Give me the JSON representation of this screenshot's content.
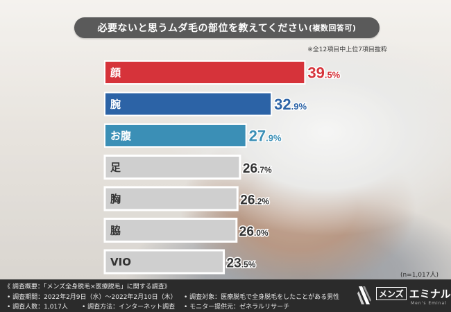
{
  "title": {
    "main": "必要ないと思うムダ毛の部位を教えてください",
    "sub": "(複数回答可)"
  },
  "note_top": "※全12項目中上位7項目抜粋",
  "n_note": "(n=1,017人)",
  "chart_data": {
    "type": "bar",
    "orientation": "horizontal",
    "categories": [
      "顔",
      "腕",
      "お腹",
      "足",
      "胸",
      "脇",
      "VIO"
    ],
    "values": [
      39.5,
      32.9,
      27.9,
      26.7,
      26.2,
      26.0,
      23.5
    ],
    "value_labels": [
      {
        "int": "39",
        "dec": ".5%"
      },
      {
        "int": "32",
        "dec": ".9%"
      },
      {
        "int": "27",
        "dec": ".9%"
      },
      {
        "int": "26",
        "dec": ".7%"
      },
      {
        "int": "26",
        "dec": ".2%"
      },
      {
        "int": "26",
        "dec": ".0%"
      },
      {
        "int": "23",
        "dec": ".5%"
      }
    ],
    "bar_colors": [
      "#d6333a",
      "#2c63a6",
      "#3b8fb6",
      "#cfcfcf",
      "#cfcfcf",
      "#cfcfcf",
      "#cfcfcf"
    ],
    "label_colors": [
      "#ffffff",
      "#ffffff",
      "#ffffff",
      "#333333",
      "#333333",
      "#333333",
      "#333333"
    ],
    "value_colors": [
      "#d6333a",
      "#2c63a6",
      "#3b8fb6",
      "#333333",
      "#333333",
      "#333333",
      "#333333"
    ],
    "xlim": [
      0,
      40
    ]
  },
  "footer": {
    "survey_title": "《 調査概要：「メンズ全身脱毛×医療脱毛」に関する調査》",
    "period": "• 調査期間：2022年2月9日（水）～2022年2月10日（木）",
    "count": "• 調査人数：1,017人",
    "method": "• 調査方法：インターネット調査",
    "target": "• 調査対象：医療脱毛で全身脱毛をしたことがある男性",
    "provider": "• モニター提供元：ゼネラルリサーチ"
  },
  "logo": {
    "boxed": "メンズ",
    "name": "エミナル",
    "tagline": "Men's Eminal"
  }
}
